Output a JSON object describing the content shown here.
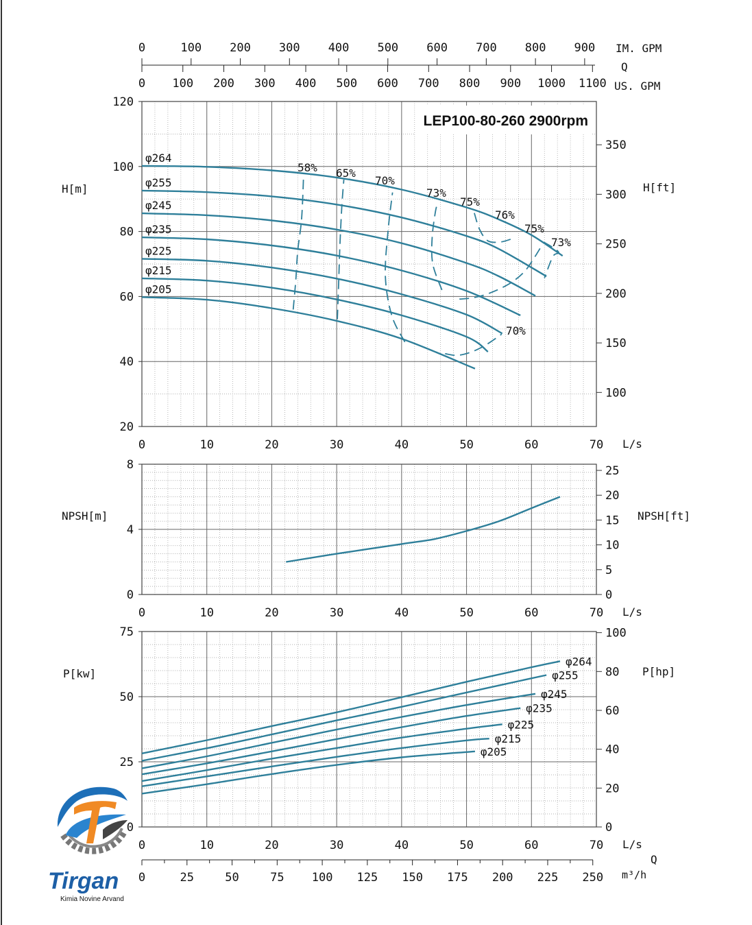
{
  "chart_data": [
    {
      "type": "line",
      "title": "LEP100-80-260 2900rpm",
      "xlabel": "L/s",
      "ylabel": "H[m]",
      "y2label": "H[ft]",
      "xlim": [
        0,
        70
      ],
      "ylim": [
        20,
        120
      ],
      "y2lim_ft": [
        65.6,
        393.7
      ],
      "x_ticks": [
        "0",
        "10",
        "20",
        "30",
        "40",
        "50",
        "60",
        "70"
      ],
      "y_ticks": [
        "20",
        "40",
        "60",
        "80",
        "100",
        "120"
      ],
      "y2_ticks": [
        "100",
        "150",
        "200",
        "250",
        "300",
        "350"
      ],
      "top_axes": {
        "q_label": "Q",
        "im_gpm": {
          "label": "IM. GPM",
          "ticks": [
            "0",
            "100",
            "200",
            "300",
            "400",
            "500",
            "600",
            "700",
            "800",
            "900"
          ]
        },
        "us_gpm": {
          "label": "US. GPM",
          "ticks": [
            "0",
            "100",
            "200",
            "300",
            "400",
            "500",
            "600",
            "700",
            "800",
            "900",
            "1000",
            "1100"
          ]
        }
      },
      "grid": true,
      "series": [
        {
          "name": "φ264",
          "x": [
            0,
            10,
            20,
            30,
            40,
            50,
            55,
            60,
            64.8
          ],
          "y": [
            100.2,
            99.9,
            98.8,
            96.6,
            92.9,
            87.4,
            83.7,
            78.9,
            72.5
          ]
        },
        {
          "name": "φ255",
          "x": [
            0,
            10,
            20,
            30,
            40,
            50,
            55,
            62.3
          ],
          "y": [
            92.6,
            92.1,
            90.8,
            88.3,
            84.3,
            78.6,
            74.6,
            66.2
          ]
        },
        {
          "name": "φ245",
          "x": [
            0,
            10,
            20,
            30,
            40,
            50,
            55,
            60.6
          ],
          "y": [
            85.6,
            85.0,
            83.4,
            80.6,
            76.4,
            70.3,
            66.2,
            60.2
          ]
        },
        {
          "name": "φ235",
          "x": [
            0,
            10,
            20,
            30,
            40,
            50,
            58.3
          ],
          "y": [
            78.2,
            77.6,
            75.7,
            72.6,
            68.0,
            61.7,
            54.2
          ]
        },
        {
          "name": "φ225",
          "x": [
            0,
            10,
            20,
            30,
            40,
            50,
            55.5
          ],
          "y": [
            71.6,
            71.0,
            68.9,
            65.5,
            60.7,
            54.4,
            48.6
          ]
        },
        {
          "name": "φ215",
          "x": [
            0,
            10,
            20,
            30,
            40,
            50,
            53.3
          ],
          "y": [
            65.6,
            64.9,
            62.7,
            59.1,
            54.2,
            47.6,
            43.0
          ]
        },
        {
          "name": "φ205",
          "x": [
            0,
            10,
            20,
            30,
            40,
            51.3
          ],
          "y": [
            59.8,
            59.0,
            56.4,
            52.5,
            47.0,
            37.8
          ]
        }
      ],
      "efficiency_curves": [
        {
          "label": "58%",
          "x": [
            23.3,
            23.7,
            24.0,
            24.6,
            24.9
          ],
          "y": [
            56,
            65,
            74,
            84,
            97
          ]
        },
        {
          "label": "65%",
          "x": [
            30.1,
            30.3,
            30.5,
            30.8,
            31.1
          ],
          "y": [
            53,
            64,
            76,
            88,
            96
          ]
        },
        {
          "label": "70%",
          "x": [
            40.5,
            38.5,
            37.5,
            37.9,
            38.6
          ],
          "y": [
            46,
            54,
            66,
            80,
            92
          ]
        },
        {
          "label": "73%",
          "x": [
            46.2,
            44.8,
            44.7,
            45.2,
            45.6
          ],
          "y": [
            62,
            70,
            78,
            86,
            89
          ]
        },
        {
          "label": "75%",
          "x": [
            48.9,
            51.0,
            53.5,
            56.5,
            58.8,
            60.3,
            61.6
          ],
          "y": [
            59.2,
            59.6,
            61.0,
            63.8,
            67.4,
            71.5,
            75.7
          ]
        },
        {
          "label": "76%",
          "x": [
            51.2,
            52.0,
            53.3,
            55.3,
            57.2
          ],
          "y": [
            85.7,
            80.7,
            77.1,
            76.8,
            77.9
          ]
        },
        {
          "label": "70%",
          "x": [
            46.7,
            48.6,
            50.7,
            52.9,
            55.4
          ],
          "y": [
            42.4,
            41.9,
            42.9,
            45.0,
            48.4
          ]
        },
        {
          "label": "73%",
          "x": [
            61.9,
            63.2,
            64.2,
            63.3,
            62.0
          ],
          "y": [
            76.7,
            75.2,
            73.5,
            72.3,
            65.7
          ]
        }
      ]
    },
    {
      "type": "line",
      "xlabel": "L/s",
      "ylabel": "NPSH[m]",
      "y2label": "NPSH[ft]",
      "xlim": [
        0,
        70
      ],
      "ylim": [
        0,
        8
      ],
      "x_ticks": [
        "0",
        "10",
        "20",
        "30",
        "40",
        "50",
        "60",
        "70"
      ],
      "y_ticks": [
        "0",
        "4",
        "8"
      ],
      "y2_ticks": [
        "0",
        "5",
        "10",
        "15",
        "20",
        "25"
      ],
      "grid": true,
      "series": [
        {
          "name": "NPSH",
          "x": [
            22.2,
            30,
            40,
            45,
            50,
            55,
            60,
            64.4
          ],
          "y": [
            2.0,
            2.5,
            3.1,
            3.4,
            3.9,
            4.5,
            5.3,
            6.0
          ]
        }
      ]
    },
    {
      "type": "line",
      "xlabel": "L/s",
      "ylabel": "P[kw]",
      "y2label": "P[hp]",
      "xlim": [
        0,
        70
      ],
      "ylim": [
        0,
        75
      ],
      "x_ticks": [
        "0",
        "10",
        "20",
        "30",
        "40",
        "50",
        "60",
        "70"
      ],
      "y_ticks": [
        "0",
        "25",
        "50",
        "75"
      ],
      "y2_ticks": [
        "0",
        "20",
        "40",
        "60",
        "80",
        "100"
      ],
      "bottom_axis": {
        "q_label": "Q",
        "label": "m³/h",
        "ticks": [
          "0",
          "25",
          "50",
          "75",
          "100",
          "125",
          "150",
          "175",
          "200",
          "225",
          "250"
        ]
      },
      "grid": true,
      "series": [
        {
          "name": "φ264",
          "x": [
            0,
            10,
            20,
            30,
            40,
            50,
            60,
            64.4
          ],
          "y": [
            28.2,
            33.3,
            38.7,
            44.0,
            49.8,
            55.7,
            61.3,
            63.6
          ]
        },
        {
          "name": "φ255",
          "x": [
            0,
            10,
            20,
            30,
            40,
            50,
            62.3
          ],
          "y": [
            25.4,
            30.2,
            35.5,
            40.9,
            46.1,
            51.6,
            58.3
          ]
        },
        {
          "name": "φ245",
          "x": [
            0,
            10,
            20,
            30,
            40,
            50,
            60.6
          ],
          "y": [
            22.5,
            27.1,
            32.3,
            37.4,
            42.2,
            46.8,
            51.1
          ]
        },
        {
          "name": "φ235",
          "x": [
            0,
            10,
            20,
            30,
            40,
            50,
            58.3
          ],
          "y": [
            20.2,
            24.4,
            29.0,
            33.7,
            38.3,
            42.6,
            45.6
          ]
        },
        {
          "name": "φ225",
          "x": [
            0,
            10,
            20,
            30,
            40,
            50,
            55.5
          ],
          "y": [
            17.6,
            21.8,
            26.2,
            30.3,
            34.3,
            37.7,
            39.4
          ]
        },
        {
          "name": "φ215",
          "x": [
            0,
            10,
            20,
            30,
            40,
            50,
            53.5
          ],
          "y": [
            15.6,
            19.4,
            23.2,
            26.9,
            30.3,
            33.2,
            33.9
          ]
        },
        {
          "name": "φ205",
          "x": [
            0,
            10,
            20,
            30,
            40,
            51.3
          ],
          "y": [
            12.8,
            16.4,
            20.3,
            23.8,
            26.7,
            29.0
          ]
        }
      ]
    }
  ],
  "colors": {
    "curve": "#2e7f9a",
    "grid": "#777777",
    "frame": "#444444"
  },
  "logo": {
    "brand": "Tirgan",
    "subtitle": "Kimia Novine Arvand"
  }
}
